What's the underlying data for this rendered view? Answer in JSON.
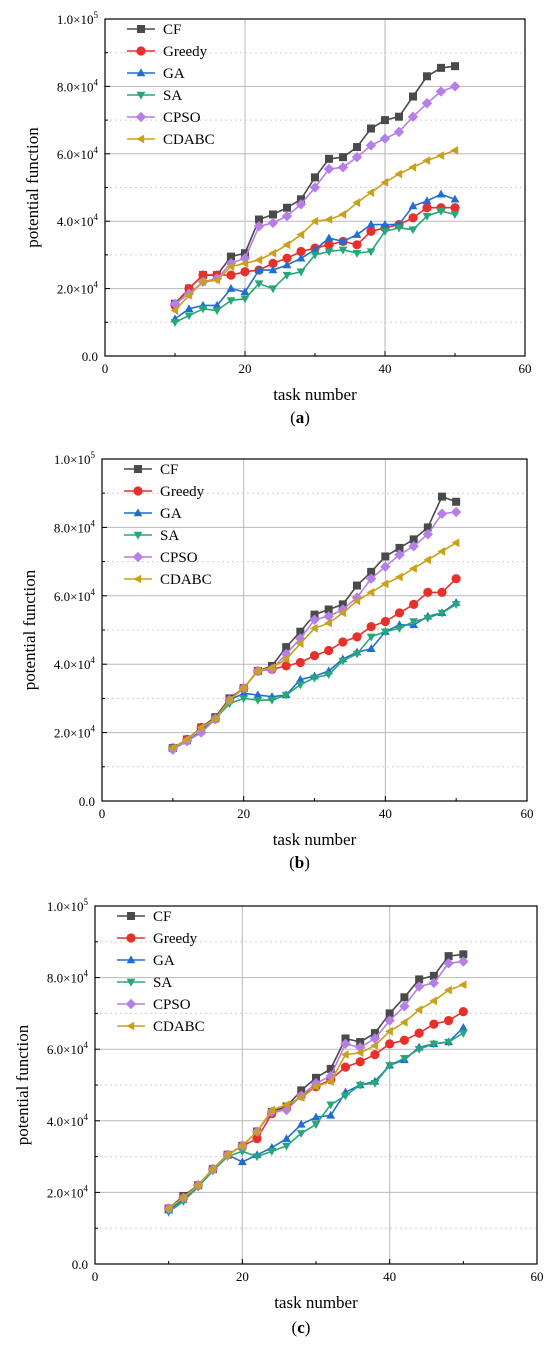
{
  "series_style": [
    {
      "color": "#4a4a4a",
      "marker": "square"
    },
    {
      "color": "#e8302a",
      "marker": "circle"
    },
    {
      "color": "#1f6fd1",
      "marker": "triangle-up"
    },
    {
      "color": "#27a777",
      "marker": "triangle-down"
    },
    {
      "color": "#b57fe6",
      "marker": "diamond"
    },
    {
      "color": "#c9a21a",
      "marker": "triangle-left"
    }
  ],
  "chart_data": [
    {
      "type": "line",
      "caption_letter": "a",
      "xlabel": "task number",
      "ylabel": "potential function",
      "xlim": [
        0,
        60
      ],
      "ylim": [
        0,
        100000
      ],
      "xticks": [
        "0",
        "20",
        "40",
        "60"
      ],
      "yticks": [
        {
          "mantissa": "0.0",
          "exp": ""
        },
        {
          "mantissa": "2.0×10",
          "exp": "4"
        },
        {
          "mantissa": "4.0×10",
          "exp": "4"
        },
        {
          "mantissa": "6.0×10",
          "exp": "4"
        },
        {
          "mantissa": "8.0×10",
          "exp": "4"
        },
        {
          "mantissa": "1.0×10",
          "exp": "5"
        }
      ],
      "grid": true,
      "legend_position": "top-left",
      "x": [
        10,
        12,
        14,
        16,
        18,
        20,
        22,
        24,
        26,
        28,
        30,
        32,
        34,
        36,
        38,
        40,
        42,
        44,
        46,
        48,
        50
      ],
      "series": [
        {
          "name": "CF",
          "values": [
            15500,
            20000,
            24000,
            24000,
            29500,
            30500,
            40500,
            42000,
            44000,
            46500,
            53000,
            58500,
            59000,
            62000,
            67500,
            70000,
            71000,
            77000,
            83000,
            85500,
            86000
          ]
        },
        {
          "name": "Greedy",
          "values": [
            15000,
            20000,
            24000,
            24000,
            24000,
            25000,
            25500,
            27500,
            29000,
            31000,
            32000,
            33000,
            34000,
            33000,
            37000,
            38000,
            39000,
            41000,
            44000,
            44000,
            44000
          ]
        },
        {
          "name": "GA",
          "values": [
            11000,
            14000,
            15000,
            15000,
            20000,
            19000,
            25500,
            25500,
            27000,
            29000,
            31500,
            35000,
            34000,
            36000,
            39000,
            39000,
            39000,
            44500,
            46000,
            48000,
            46500
          ]
        },
        {
          "name": "SA",
          "values": [
            10000,
            12000,
            14000,
            13500,
            16500,
            17000,
            21500,
            20000,
            24000,
            25000,
            30000,
            31000,
            31500,
            30500,
            31000,
            37000,
            38000,
            37500,
            41500,
            43000,
            42000
          ]
        },
        {
          "name": "CPSO",
          "values": [
            15500,
            18500,
            22000,
            23000,
            27500,
            29000,
            38500,
            39500,
            41500,
            45000,
            50000,
            55500,
            56000,
            59000,
            62500,
            64500,
            66500,
            71000,
            75000,
            78500,
            80000
          ]
        },
        {
          "name": "CDABC",
          "values": [
            13500,
            18000,
            22000,
            22500,
            26500,
            27500,
            28500,
            30500,
            33000,
            36000,
            40000,
            40500,
            42000,
            45500,
            48500,
            51500,
            54000,
            56000,
            58000,
            59500,
            61000
          ]
        }
      ]
    },
    {
      "type": "line",
      "caption_letter": "b",
      "xlabel": "task number",
      "ylabel": "potential function",
      "xlim": [
        0,
        60
      ],
      "ylim": [
        0,
        100000
      ],
      "xticks": [
        "0",
        "20",
        "40",
        "60"
      ],
      "yticks": [
        {
          "mantissa": "0.0",
          "exp": ""
        },
        {
          "mantissa": "2.0×10",
          "exp": "4"
        },
        {
          "mantissa": "4.0×10",
          "exp": "4"
        },
        {
          "mantissa": "6.0×10",
          "exp": "4"
        },
        {
          "mantissa": "8.0×10",
          "exp": "4"
        },
        {
          "mantissa": "1.0×10",
          "exp": "5"
        }
      ],
      "grid": true,
      "legend_position": "top-left",
      "x": [
        10,
        12,
        14,
        16,
        18,
        20,
        22,
        24,
        26,
        28,
        30,
        32,
        34,
        36,
        38,
        40,
        42,
        44,
        46,
        48,
        50
      ],
      "series": [
        {
          "name": "CF",
          "values": [
            15500,
            18000,
            21500,
            24500,
            30000,
            33000,
            38000,
            39500,
            45000,
            49500,
            54500,
            56000,
            57500,
            63000,
            67000,
            71500,
            74000,
            76500,
            80000,
            89000,
            87500
          ]
        },
        {
          "name": "Greedy",
          "values": [
            15500,
            18000,
            21500,
            24000,
            29500,
            33000,
            38000,
            38500,
            39500,
            40500,
            42500,
            44000,
            46500,
            48000,
            51000,
            52500,
            55000,
            57500,
            61000,
            61000,
            65000
          ]
        },
        {
          "name": "GA",
          "values": [
            15500,
            17500,
            20500,
            24000,
            29500,
            31500,
            31000,
            30500,
            31000,
            35500,
            36500,
            38000,
            41500,
            43500,
            44500,
            49500,
            51500,
            51500,
            54000,
            55000,
            58000
          ]
        },
        {
          "name": "SA",
          "values": [
            15500,
            17500,
            20000,
            24000,
            28500,
            30000,
            29500,
            29500,
            31000,
            34000,
            36000,
            37000,
            41000,
            43000,
            48000,
            49500,
            50500,
            52500,
            53500,
            55000,
            57500
          ]
        },
        {
          "name": "CPSO",
          "values": [
            15000,
            17500,
            20000,
            24000,
            29500,
            33000,
            38000,
            38500,
            43000,
            47500,
            53000,
            54000,
            56000,
            59500,
            65000,
            68500,
            72000,
            74500,
            78000,
            84000,
            84500
          ]
        },
        {
          "name": "CDABC",
          "values": [
            15500,
            18000,
            21500,
            24000,
            29500,
            33000,
            38000,
            39000,
            41500,
            46000,
            50500,
            52000,
            55000,
            58500,
            61000,
            63500,
            65500,
            68000,
            70500,
            73000,
            75500
          ]
        }
      ]
    },
    {
      "type": "line",
      "caption_letter": "c",
      "xlabel": "task number",
      "ylabel": "potential function",
      "xlim": [
        0,
        60
      ],
      "ylim": [
        0,
        100000
      ],
      "xticks": [
        "0",
        "20",
        "40",
        "60"
      ],
      "yticks": [
        {
          "mantissa": "0.0",
          "exp": ""
        },
        {
          "mantissa": "2.0×10",
          "exp": "4"
        },
        {
          "mantissa": "4.0×10",
          "exp": "4"
        },
        {
          "mantissa": "6.0×10",
          "exp": "4"
        },
        {
          "mantissa": "8.0×10",
          "exp": "4"
        },
        {
          "mantissa": "1.0×10",
          "exp": "5"
        }
      ],
      "grid": true,
      "legend_position": "top-left",
      "x": [
        10,
        12,
        14,
        16,
        18,
        20,
        22,
        24,
        26,
        28,
        30,
        32,
        34,
        36,
        38,
        40,
        42,
        44,
        46,
        48,
        50
      ],
      "series": [
        {
          "name": "CF",
          "values": [
            15500,
            19000,
            22000,
            26500,
            30500,
            33000,
            37000,
            42500,
            44000,
            48500,
            52000,
            54500,
            63000,
            62000,
            64500,
            70000,
            74500,
            79500,
            80500,
            86000,
            86500
          ]
        },
        {
          "name": "Greedy",
          "values": [
            15500,
            18500,
            22000,
            26500,
            30500,
            33000,
            35000,
            42000,
            43500,
            47000,
            49500,
            51500,
            55000,
            56500,
            58500,
            61500,
            62500,
            64500,
            67000,
            68000,
            70500
          ]
        },
        {
          "name": "GA",
          "values": [
            15000,
            18000,
            22000,
            26500,
            30500,
            28500,
            30500,
            32500,
            35000,
            39000,
            41000,
            41500,
            48000,
            50000,
            51000,
            55500,
            57000,
            60500,
            61500,
            62000,
            66000
          ]
        },
        {
          "name": "SA",
          "values": [
            14500,
            17500,
            21500,
            26000,
            30000,
            31500,
            30000,
            31500,
            33000,
            36500,
            39000,
            44500,
            47000,
            50000,
            50500,
            55500,
            57500,
            60000,
            61500,
            62000,
            64500
          ]
        },
        {
          "name": "CPSO",
          "values": [
            15500,
            18500,
            22000,
            26500,
            30500,
            33000,
            37000,
            42500,
            43000,
            47000,
            50500,
            52500,
            61500,
            60500,
            63000,
            68000,
            72000,
            77500,
            78500,
            84000,
            84500
          ]
        },
        {
          "name": "CDABC",
          "values": [
            15500,
            18500,
            22000,
            26500,
            30500,
            33000,
            37000,
            43000,
            44500,
            46500,
            49500,
            51000,
            58500,
            59000,
            61000,
            65000,
            67500,
            71000,
            73500,
            76500,
            78000
          ]
        }
      ]
    }
  ]
}
